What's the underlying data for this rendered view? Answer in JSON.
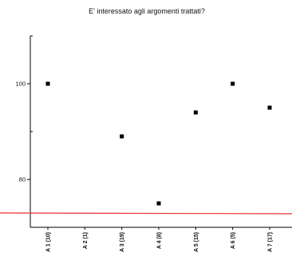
{
  "chart_data": {
    "type": "scatter",
    "title": "E' interessato agli argomenti trattati?",
    "categories": [
      "A 1 (10)",
      "A 2 (1)",
      "A 3 (19)",
      "A 4 (8)",
      "A 5 (15)",
      "A 6 (5)",
      "A 7 (17)"
    ],
    "series": [
      {
        "values": [
          100,
          null,
          89,
          75,
          94,
          100,
          95
        ]
      }
    ],
    "reference_line": {
      "value": 73,
      "color": "#e8312f"
    },
    "y_ticks": [
      80,
      100
    ],
    "ylim": [
      70,
      110
    ],
    "grid": false,
    "marker_color": "#000000"
  }
}
